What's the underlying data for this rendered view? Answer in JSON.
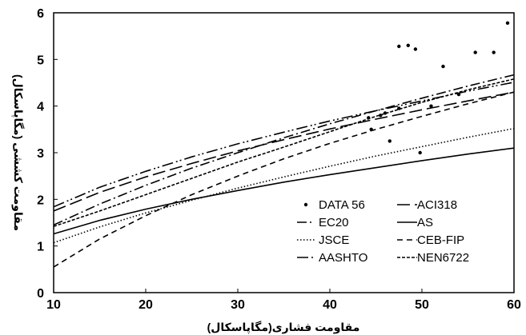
{
  "chart_data": {
    "type": "line",
    "xlabel": "مقاومت فشاری(مگاپاسکال)",
    "ylabel": "مقاومت کششی (مگاپاسکال)",
    "xlim": [
      10,
      60
    ],
    "ylim": [
      0,
      6
    ],
    "xticks": [
      "10",
      "20",
      "30",
      "40",
      "50",
      "60"
    ],
    "yticks": [
      "0",
      "1",
      "2",
      "3",
      "4",
      "5",
      "6"
    ],
    "grid": false,
    "legend_position": "bottom-right",
    "x": [
      10,
      15,
      20,
      25,
      30,
      35,
      40,
      45,
      50,
      55,
      60
    ],
    "series": [
      {
        "name": "ACI318",
        "dash": "long-dash",
        "values": [
          1.75,
          2.15,
          2.48,
          2.77,
          3.04,
          3.28,
          3.51,
          3.72,
          3.92,
          4.11,
          4.3
        ]
      },
      {
        "name": "EC20",
        "dash": "dash-dot",
        "values": [
          1.45,
          1.9,
          2.3,
          2.67,
          3.0,
          3.32,
          3.62,
          3.9,
          4.17,
          4.43,
          4.67
        ]
      },
      {
        "name": "AS",
        "dash": "solid",
        "values": [
          1.26,
          1.55,
          1.79,
          2.0,
          2.19,
          2.37,
          2.53,
          2.68,
          2.83,
          2.97,
          3.1
        ]
      },
      {
        "name": "JSCE",
        "dash": "dotted",
        "values": [
          1.07,
          1.41,
          1.71,
          1.98,
          2.24,
          2.48,
          2.71,
          2.93,
          3.13,
          3.33,
          3.52
        ]
      },
      {
        "name": "CEB-FIP",
        "dash": "dash",
        "values": [
          0.55,
          1.15,
          1.65,
          2.1,
          2.5,
          2.87,
          3.2,
          3.5,
          3.78,
          4.05,
          4.3
        ]
      },
      {
        "name": "AASHTO",
        "dash": "dash-dot-dot",
        "values": [
          1.84,
          2.26,
          2.6,
          2.91,
          3.19,
          3.44,
          3.68,
          3.9,
          4.11,
          4.32,
          4.51
        ]
      },
      {
        "name": "NEN6722",
        "dash": "short-dash",
        "values": [
          1.42,
          1.75,
          2.1,
          2.45,
          2.8,
          3.12,
          3.45,
          3.78,
          4.08,
          4.35,
          4.58
        ]
      }
    ],
    "points": {
      "name": "DATA 56",
      "values": [
        [
          44.2,
          3.75
        ],
        [
          44.5,
          3.5
        ],
        [
          45.5,
          3.8
        ],
        [
          46.5,
          3.25
        ],
        [
          46.0,
          3.85
        ],
        [
          47.5,
          3.95
        ],
        [
          47.5,
          5.28
        ],
        [
          48.5,
          5.3
        ],
        [
          49.3,
          5.22
        ],
        [
          49.8,
          3.0
        ],
        [
          51.0,
          4.0
        ],
        [
          52.3,
          4.85
        ],
        [
          54.0,
          4.25
        ],
        [
          55.8,
          5.15
        ],
        [
          57.8,
          5.15
        ],
        [
          59.3,
          5.78
        ]
      ]
    },
    "legend_order": [
      "DATA 56",
      "ACI318",
      "EC20",
      "AS",
      "JSCE",
      "CEB-FIP",
      "AASHTO",
      "NEN6722"
    ]
  }
}
